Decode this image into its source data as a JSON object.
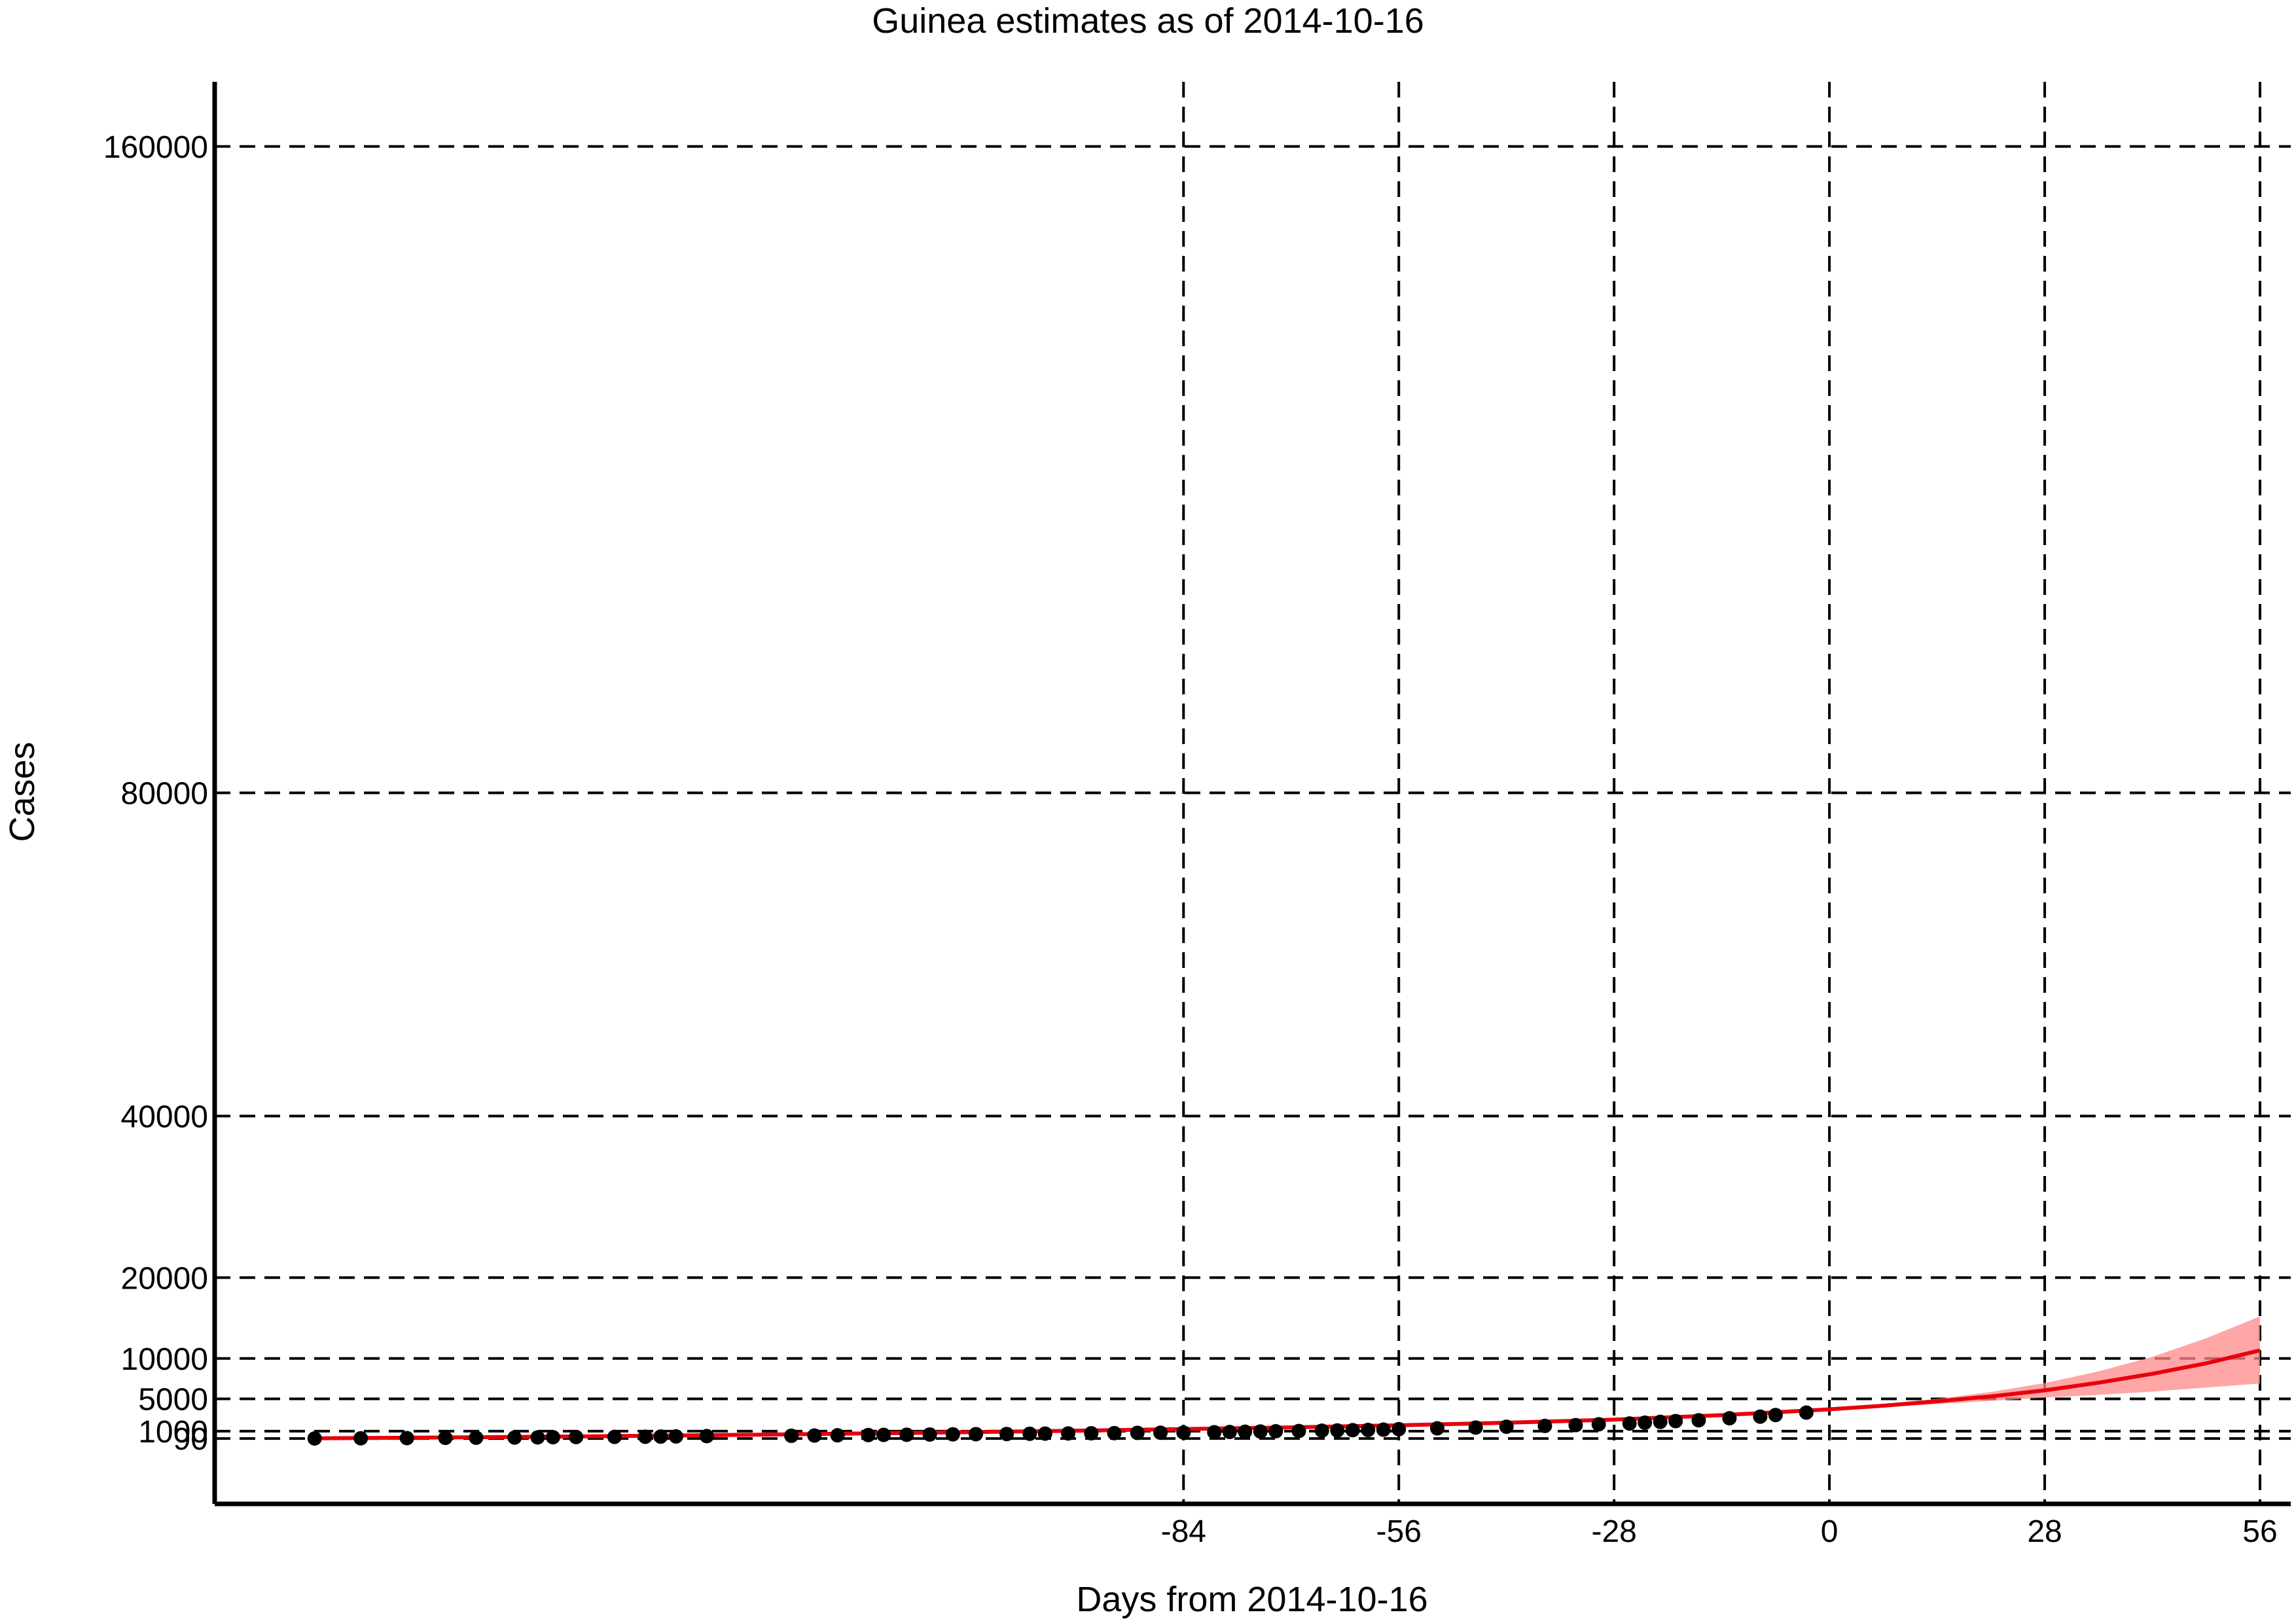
{
  "chart_data": {
    "type": "line",
    "title": "Guinea estimates as of 2014-10-16",
    "xlabel": "Days from 2014-10-16",
    "ylabel": "Cases",
    "xlim": [
      -210,
      60
    ],
    "ylim": [
      -8000,
      168000
    ],
    "x_ticks": [
      -84,
      -56,
      -28,
      0,
      28,
      56
    ],
    "y_ticks": [
      90,
      1000,
      5000,
      10000,
      20000,
      40000,
      80000,
      160000
    ],
    "y_tick_labels": [
      "90",
      "1000",
      "5000",
      "10000",
      "20000",
      "40000",
      "80000",
      "160000"
    ],
    "grid": true,
    "colors": {
      "fit": "#e8000b",
      "ci": "#f88888",
      "points": "#000000"
    },
    "series": [
      {
        "type": "scatter",
        "x": [
          -197,
          -191,
          -185,
          -180,
          -176,
          -171,
          -168,
          -166,
          -163,
          -158,
          -154,
          -152,
          -150,
          -146,
          -135,
          -132,
          -129,
          -125,
          -123,
          -120,
          -117,
          -114,
          -111,
          -107,
          -104,
          -102,
          -99,
          -96,
          -93,
          -90,
          -87,
          -84,
          -80,
          -78,
          -76,
          -74,
          -72,
          -69,
          -66,
          -64,
          -62,
          -60,
          -58,
          -56,
          -51,
          -46,
          -42,
          -37,
          -33,
          -30,
          -26,
          -24,
          -22,
          -20,
          -17,
          -13,
          -9,
          -7,
          -3
        ],
        "y": [
          100,
          120,
          140,
          170,
          190,
          210,
          230,
          250,
          270,
          290,
          310,
          330,
          350,
          390,
          430,
          460,
          490,
          520,
          540,
          560,
          590,
          610,
          630,
          650,
          680,
          700,
          720,
          740,
          760,
          790,
          810,
          830,
          870,
          900,
          930,
          960,
          990,
          1020,
          1060,
          1090,
          1120,
          1150,
          1190,
          1250,
          1350,
          1450,
          1550,
          1650,
          1750,
          1850,
          1950,
          2050,
          2150,
          2250,
          2350,
          2600,
          2800,
          3000,
          3300
        ]
      },
      {
        "type": "line",
        "x": [
          -197,
          -180,
          -160,
          -140,
          -120,
          -100,
          -84,
          -70,
          -56,
          -42,
          -28,
          -14,
          0,
          7,
          14,
          21,
          28,
          35,
          42,
          49,
          56
        ],
        "y": [
          120,
          220,
          370,
          560,
          780,
          1030,
          1260,
          1470,
          1730,
          2040,
          2430,
          2980,
          3700,
          4150,
          4700,
          5300,
          6050,
          7000,
          8100,
          9400,
          11000
        ]
      },
      {
        "type": "band",
        "x": [
          0,
          7,
          14,
          21,
          28,
          35,
          42,
          49,
          56
        ],
        "lower": [
          3600,
          3950,
          4350,
          4750,
          5150,
          5500,
          5900,
          6400,
          6900
        ],
        "upper": [
          3800,
          4350,
          5000,
          5850,
          6950,
          8400,
          10200,
          12500,
          15200
        ]
      }
    ]
  }
}
